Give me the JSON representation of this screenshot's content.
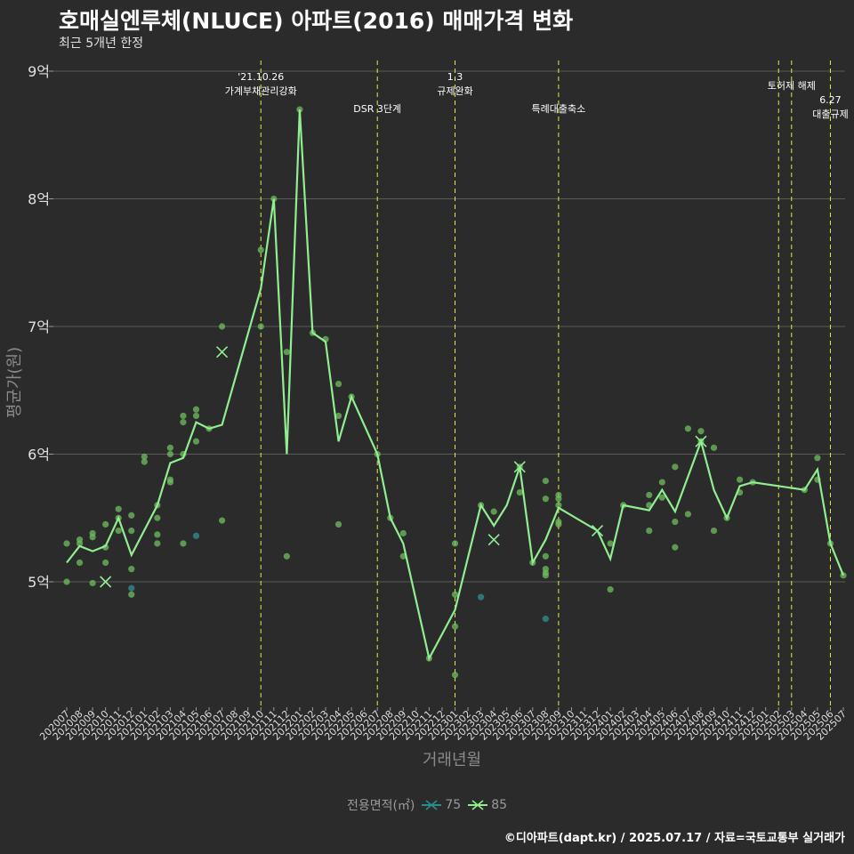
{
  "header": {
    "title": "호매실엔루체(NLUCE) 아파트(2016) 매매가격 변화",
    "subtitle": "최근 5개년 한정"
  },
  "caption": "©디아파트(dapt.kr) / 2025.07.17 / 자료=국토교통부 실거래가",
  "legend": {
    "title": "전용면적(㎡)",
    "items": [
      {
        "label": "75",
        "color": "#2b8c8c"
      },
      {
        "label": "85",
        "color": "#90ee90"
      }
    ]
  },
  "colors": {
    "background": "#2b2b2b",
    "line": "#90ee90",
    "point85": "#6fbf5f",
    "point75": "#2f7f7f",
    "event_line": "#e8e84a",
    "grid": "#5a5a5a"
  },
  "chart_data": {
    "type": "line",
    "xlabel": "거래년월",
    "ylabel": "평균가(원)",
    "ylim": [
      3.9,
      9.05
    ],
    "y_ticks": [
      {
        "value": 5,
        "label": "5억"
      },
      {
        "value": 6,
        "label": "6억"
      },
      {
        "value": 7,
        "label": "7억"
      },
      {
        "value": 8,
        "label": "8억"
      },
      {
        "value": 9,
        "label": "9억"
      }
    ],
    "categories": [
      "202007",
      "202008",
      "202009",
      "202010",
      "202011",
      "202012",
      "202101",
      "202102",
      "202103",
      "202104",
      "202105",
      "202106",
      "202107",
      "202108",
      "202109",
      "202110",
      "202111",
      "202112",
      "202201",
      "202202",
      "202203",
      "202204",
      "202205",
      "202206",
      "202207",
      "202208",
      "202209",
      "202210",
      "202211",
      "202212",
      "202301",
      "202302",
      "202303",
      "202304",
      "202305",
      "202306",
      "202307",
      "202308",
      "202309",
      "202310",
      "202311",
      "202312",
      "202401",
      "202402",
      "202403",
      "202404",
      "202405",
      "202406",
      "202407",
      "202408",
      "202409",
      "202410",
      "202411",
      "202412",
      "202501",
      "202502",
      "202503",
      "202504",
      "202505",
      "202506",
      "202507"
    ],
    "series": [
      {
        "name": "85",
        "line": [
          [
            "202007",
            5.15
          ],
          [
            "202008",
            5.28
          ],
          [
            "202009",
            5.24
          ],
          [
            "202010",
            5.28
          ],
          [
            "202011",
            5.5
          ],
          [
            "202012",
            5.21
          ],
          [
            "202102",
            5.6
          ],
          [
            "202103",
            5.93
          ],
          [
            "202104",
            5.97
          ],
          [
            "202105",
            6.25
          ],
          [
            "202106",
            6.2
          ],
          [
            "202107",
            6.23
          ],
          [
            "202110",
            7.3
          ],
          [
            "202111",
            8.0
          ],
          [
            "202112",
            6.0
          ],
          [
            "202201",
            8.7
          ],
          [
            "202202",
            6.95
          ],
          [
            "202203",
            6.88
          ],
          [
            "202204",
            6.1
          ],
          [
            "202205",
            6.45
          ],
          [
            "202207",
            6.0
          ],
          [
            "202208",
            5.5
          ],
          [
            "202209",
            5.3
          ],
          [
            "202211",
            4.4
          ],
          [
            "202301",
            4.78
          ],
          [
            "202303",
            5.6
          ],
          [
            "202304",
            5.44
          ],
          [
            "202305",
            5.6
          ],
          [
            "202306",
            5.9
          ],
          [
            "202307",
            5.15
          ],
          [
            "202308",
            5.33
          ],
          [
            "202309",
            5.58
          ],
          [
            "202312",
            5.4
          ],
          [
            "202401",
            5.18
          ],
          [
            "202402",
            5.6
          ],
          [
            "202404",
            5.56
          ],
          [
            "202405",
            5.72
          ],
          [
            "202406",
            5.55
          ],
          [
            "202408",
            6.1
          ],
          [
            "202409",
            5.72
          ],
          [
            "202410",
            5.5
          ],
          [
            "202411",
            5.75
          ],
          [
            "202412",
            5.78
          ],
          [
            "202504",
            5.72
          ],
          [
            "202505",
            5.88
          ],
          [
            "202506",
            5.3
          ],
          [
            "202507",
            5.05
          ]
        ],
        "points": [
          [
            "202007",
            5.3
          ],
          [
            "202007",
            5.0
          ],
          [
            "202008",
            5.33
          ],
          [
            "202008",
            5.3
          ],
          [
            "202008",
            5.15
          ],
          [
            "202009",
            5.38
          ],
          [
            "202009",
            5.35
          ],
          [
            "202009",
            4.99
          ],
          [
            "202010",
            5.45
          ],
          [
            "202010",
            5.27
          ],
          [
            "202010",
            5.15
          ],
          [
            "202011",
            5.57
          ],
          [
            "202011",
            5.5
          ],
          [
            "202011",
            5.4
          ],
          [
            "202012",
            5.52
          ],
          [
            "202012",
            5.4
          ],
          [
            "202012",
            5.1
          ],
          [
            "202012",
            4.9
          ],
          [
            "202102",
            5.6
          ],
          [
            "202102",
            5.5
          ],
          [
            "202102",
            5.37
          ],
          [
            "202102",
            5.3
          ],
          [
            "202103",
            6.05
          ],
          [
            "202103",
            6.0
          ],
          [
            "202103",
            5.8
          ],
          [
            "202103",
            5.78
          ],
          [
            "202101",
            5.98
          ],
          [
            "202101",
            5.94
          ],
          [
            "202104",
            6.3
          ],
          [
            "202104",
            6.25
          ],
          [
            "202104",
            6.0
          ],
          [
            "202104",
            5.3
          ],
          [
            "202105",
            6.35
          ],
          [
            "202105",
            6.3
          ],
          [
            "202105",
            6.1
          ],
          [
            "202106",
            6.2
          ],
          [
            "202107",
            7.0
          ],
          [
            "202107",
            5.48
          ],
          [
            "202110",
            7.6
          ],
          [
            "202110",
            7.0
          ],
          [
            "202111",
            8.0
          ],
          [
            "202112",
            6.8
          ],
          [
            "202112",
            5.2
          ],
          [
            "202201",
            8.7
          ],
          [
            "202202",
            6.95
          ],
          [
            "202203",
            6.9
          ],
          [
            "202204",
            6.55
          ],
          [
            "202204",
            6.3
          ],
          [
            "202204",
            5.45
          ],
          [
            "202205",
            6.45
          ],
          [
            "202207",
            6.0
          ],
          [
            "202208",
            5.5
          ],
          [
            "202209",
            5.38
          ],
          [
            "202209",
            5.2
          ],
          [
            "202211",
            4.4
          ],
          [
            "202301",
            5.3
          ],
          [
            "202301",
            4.9
          ],
          [
            "202301",
            4.65
          ],
          [
            "202301",
            4.27
          ],
          [
            "202303",
            5.6
          ],
          [
            "202304",
            5.55
          ],
          [
            "202306",
            5.9
          ],
          [
            "202306",
            5.7
          ],
          [
            "202307",
            5.15
          ],
          [
            "202308",
            5.79
          ],
          [
            "202308",
            5.65
          ],
          [
            "202308",
            5.2
          ],
          [
            "202308",
            5.1
          ],
          [
            "202308",
            5.07
          ],
          [
            "202308",
            5.05
          ],
          [
            "202309",
            5.68
          ],
          [
            "202309",
            5.65
          ],
          [
            "202309",
            5.6
          ],
          [
            "202309",
            5.47
          ],
          [
            "202309",
            5.45
          ],
          [
            "202401",
            5.3
          ],
          [
            "202401",
            4.94
          ],
          [
            "202402",
            5.6
          ],
          [
            "202404",
            5.68
          ],
          [
            "202404",
            5.6
          ],
          [
            "202404",
            5.4
          ],
          [
            "202405",
            5.78
          ],
          [
            "202405",
            5.66
          ],
          [
            "202406",
            5.9
          ],
          [
            "202406",
            5.47
          ],
          [
            "202406",
            5.27
          ],
          [
            "202407",
            6.2
          ],
          [
            "202407",
            5.53
          ],
          [
            "202408",
            6.18
          ],
          [
            "202408",
            6.1
          ],
          [
            "202409",
            6.05
          ],
          [
            "202409",
            5.4
          ],
          [
            "202410",
            5.5
          ],
          [
            "202411",
            5.8
          ],
          [
            "202411",
            5.7
          ],
          [
            "202412",
            5.78
          ],
          [
            "202504",
            5.72
          ],
          [
            "202505",
            5.97
          ],
          [
            "202505",
            5.8
          ],
          [
            "202506",
            5.3
          ],
          [
            "202507",
            5.05
          ]
        ],
        "averages": [
          [
            "202010",
            5.0
          ],
          [
            "202107",
            6.8
          ],
          [
            "202304",
            5.33
          ],
          [
            "202306",
            5.9
          ],
          [
            "202312",
            5.4
          ],
          [
            "202408",
            6.1
          ]
        ]
      },
      {
        "name": "75",
        "points": [
          [
            "202012",
            4.95
          ],
          [
            "202105",
            5.36
          ],
          [
            "202303",
            4.88
          ],
          [
            "202308",
            4.71
          ]
        ]
      }
    ],
    "events": [
      {
        "x": "202110",
        "label_lines": [
          "'21.10.26",
          "가계부채관리강화"
        ],
        "row": 0
      },
      {
        "x": "202207",
        "label_lines": [
          "DSR 3단계"
        ],
        "row": 2
      },
      {
        "x": "202301",
        "label_lines": [
          "1.3",
          "규제완화"
        ],
        "row": 0
      },
      {
        "x": "202309",
        "label_lines": [
          "특례대출축소"
        ],
        "row": 2
      },
      {
        "x": "202502",
        "label_lines": [],
        "row": 1
      },
      {
        "x": "202503",
        "label_lines": [
          "토허제 해제"
        ],
        "row": 1
      },
      {
        "x": "202506",
        "label_lines": [
          "6.27",
          "대출규제"
        ],
        "row": 3
      }
    ]
  }
}
